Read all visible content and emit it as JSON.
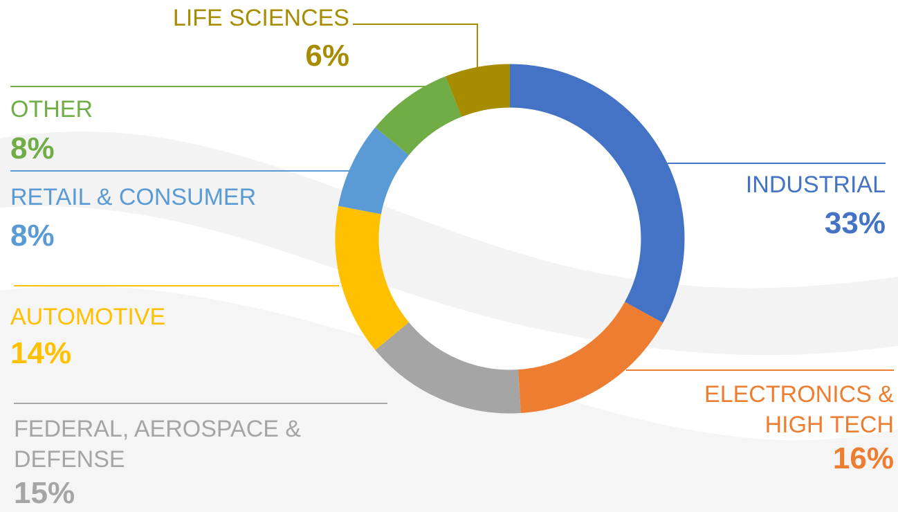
{
  "chart_data": {
    "type": "donut",
    "categories": [
      "INDUSTRIAL",
      "ELECTRONICS & HIGH TECH",
      "FEDERAL, AEROSPACE & DEFENSE",
      "AUTOMOTIVE",
      "RETAIL & CONSUMER",
      "OTHER",
      "LIFE SCIENCES"
    ],
    "values": [
      33,
      16,
      15,
      14,
      8,
      8,
      6
    ],
    "value_labels": [
      "33%",
      "16%",
      "15%",
      "14%",
      "8%",
      "8%",
      "6%"
    ],
    "colors": [
      "#4472c4",
      "#ed7d31",
      "#a5a5a5",
      "#ffc000",
      "#5b9bd5",
      "#70ad47",
      "#a68c00"
    ]
  }
}
